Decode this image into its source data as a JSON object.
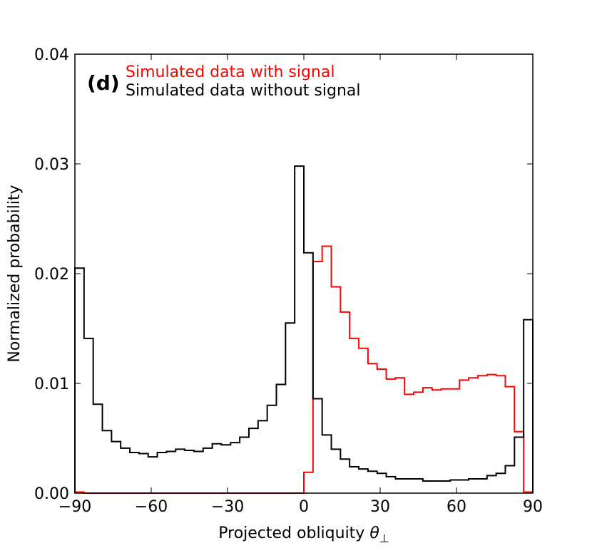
{
  "chart_data": {
    "type": "histogram-step",
    "panel_label": "(d)",
    "title": "",
    "xlabel": "Projected obliquity",
    "xlabel_symbol": "θ",
    "xlabel_subscript": "⊥",
    "ylabel": "Normalized probability",
    "xlim": [
      -90,
      90
    ],
    "ylim": [
      0,
      0.04
    ],
    "bin_width": 3.6,
    "x_ticks": [
      -90,
      -60,
      -30,
      0,
      30,
      60,
      90
    ],
    "x_tick_labels": [
      "−90",
      "−60",
      "−30",
      "0",
      "30",
      "60",
      "90"
    ],
    "y_ticks": [
      0.0,
      0.01,
      0.02,
      0.03,
      0.04
    ],
    "y_tick_labels": [
      "0.00",
      "0.01",
      "0.02",
      "0.03",
      "0.04"
    ],
    "legend_position": "top-left",
    "series": [
      {
        "name": "Simulated data with signal",
        "color": "#ff0000",
        "bin_edges": [
          -90,
          -86.4,
          -82.8,
          -79.2,
          -75.6,
          -72,
          -68.4,
          -64.8,
          -61.2,
          -57.6,
          -54,
          -50.4,
          -46.8,
          -43.2,
          -39.6,
          -36,
          -32.4,
          -28.8,
          -25.2,
          -21.6,
          -18,
          -14.4,
          -10.8,
          -7.2,
          -3.6,
          0,
          3.6,
          7.2,
          10.8,
          14.4,
          18,
          21.6,
          25.2,
          28.8,
          32.4,
          36,
          39.6,
          43.2,
          46.8,
          50.4,
          54,
          57.6,
          61.2,
          64.8,
          68.4,
          72,
          75.6,
          79.2,
          82.8,
          86.4,
          90
        ],
        "values": [
          0.0001,
          0,
          0,
          0,
          0,
          0,
          0,
          0,
          0,
          0,
          0,
          0,
          0,
          0,
          0,
          0,
          0,
          0,
          0,
          0,
          0,
          0,
          0,
          0,
          0,
          0.0019,
          0.0211,
          0.0225,
          0.0188,
          0.0165,
          0.0141,
          0.0132,
          0.0118,
          0.0113,
          0.0104,
          0.0105,
          0.009,
          0.0092,
          0.0096,
          0.0094,
          0.0095,
          0.0095,
          0.0103,
          0.0105,
          0.0107,
          0.0108,
          0.0107,
          0.0097,
          0.0056,
          0.0001
        ]
      },
      {
        "name": "Simulated data without signal",
        "color": "#000000",
        "bin_edges": [
          -90,
          -86.4,
          -82.8,
          -79.2,
          -75.6,
          -72,
          -68.4,
          -64.8,
          -61.2,
          -57.6,
          -54,
          -50.4,
          -46.8,
          -43.2,
          -39.6,
          -36,
          -32.4,
          -28.8,
          -25.2,
          -21.6,
          -18,
          -14.4,
          -10.8,
          -7.2,
          -3.6,
          0,
          3.6,
          7.2,
          10.8,
          14.4,
          18,
          21.6,
          25.2,
          28.8,
          32.4,
          36,
          39.6,
          43.2,
          46.8,
          50.4,
          54,
          57.6,
          61.2,
          64.8,
          68.4,
          72,
          75.6,
          79.2,
          82.8,
          86.4,
          90
        ],
        "values": [
          0.0205,
          0.0141,
          0.0081,
          0.0057,
          0.0047,
          0.0041,
          0.0037,
          0.0036,
          0.0033,
          0.0037,
          0.0038,
          0.004,
          0.0039,
          0.0038,
          0.0041,
          0.0045,
          0.0044,
          0.0046,
          0.0051,
          0.0059,
          0.0066,
          0.008,
          0.0099,
          0.0155,
          0.0298,
          0.0219,
          0.0086,
          0.0053,
          0.004,
          0.0031,
          0.0024,
          0.0022,
          0.002,
          0.0018,
          0.0015,
          0.0013,
          0.0013,
          0.0013,
          0.0011,
          0.0011,
          0.0011,
          0.0012,
          0.0012,
          0.0013,
          0.0013,
          0.0016,
          0.0018,
          0.0025,
          0.0051,
          0.0158
        ]
      }
    ]
  }
}
